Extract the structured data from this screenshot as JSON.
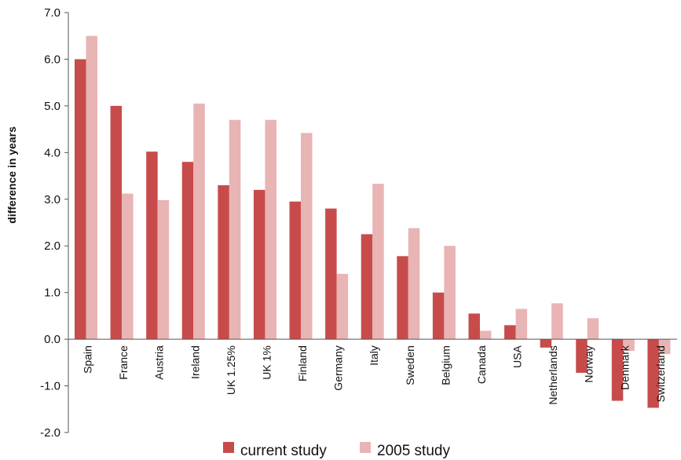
{
  "chart_data": {
    "type": "bar",
    "title": "",
    "xlabel": "",
    "ylabel": "difference in years",
    "ylim": [
      -2.0,
      7.0
    ],
    "yticks": [
      "7.0",
      "6.0",
      "5.0",
      "4.0",
      "3.0",
      "2.0",
      "1.0",
      "0.0",
      "-1.0",
      "-2.0"
    ],
    "grid": false,
    "legend_position": "bottom",
    "categories": [
      "Spain",
      "France",
      "Austria",
      "Ireland",
      "UK 1.25%",
      "UK 1%",
      "Finland",
      "Germany",
      "Italy",
      "Sweden",
      "Belgium",
      "Canada",
      "USA",
      "Netherlands",
      "Norway",
      "Denmark",
      "Switzerland"
    ],
    "series": [
      {
        "name": "current study",
        "color": "#c84b4b",
        "values": [
          6.0,
          5.0,
          4.02,
          3.8,
          3.3,
          3.2,
          2.95,
          2.8,
          2.25,
          1.78,
          1.0,
          0.55,
          0.3,
          -0.18,
          -0.72,
          -1.32,
          -1.47
        ]
      },
      {
        "name": "2005 study",
        "color": "#e9b4b4",
        "values": [
          6.5,
          3.12,
          2.98,
          5.05,
          4.7,
          4.7,
          4.42,
          1.4,
          3.33,
          2.38,
          2.0,
          0.18,
          0.65,
          0.77,
          0.45,
          -0.25,
          -0.32
        ]
      }
    ]
  }
}
